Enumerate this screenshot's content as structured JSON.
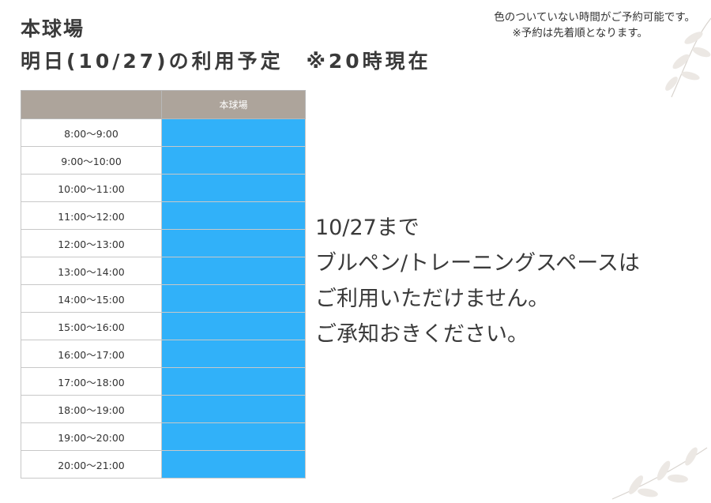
{
  "header": {
    "title_line1": "本球場",
    "title_line2": "明日(10/27)の利用予定　※20時現在",
    "note_line1": "色のついていない時間がご予約可能です。",
    "note_line2": "※予約は先着順となります。"
  },
  "schedule": {
    "column_header": "本球場",
    "reserved_color": "#31b1f9",
    "rows": [
      {
        "time": "8:00～9:00",
        "reserved": true
      },
      {
        "time": "9:00～10:00",
        "reserved": true
      },
      {
        "time": "10:00～11:00",
        "reserved": true
      },
      {
        "time": "11:00～12:00",
        "reserved": true
      },
      {
        "time": "12:00～13:00",
        "reserved": true
      },
      {
        "time": "13:00～14:00",
        "reserved": true
      },
      {
        "time": "14:00～15:00",
        "reserved": true
      },
      {
        "time": "15:00～16:00",
        "reserved": true
      },
      {
        "time": "16:00～17:00",
        "reserved": true
      },
      {
        "time": "17:00～18:00",
        "reserved": true
      },
      {
        "time": "18:00～19:00",
        "reserved": true
      },
      {
        "time": "19:00～20:00",
        "reserved": true
      },
      {
        "time": "20:00～21:00",
        "reserved": true
      }
    ]
  },
  "message": {
    "line1": "10/27まで",
    "line2": "ブルペン/トレーニングスペースは",
    "line3": "ご利用いただけません。",
    "line4": "ご承知おきください。"
  },
  "decorations": {
    "top_right": "leaf-branch-icon",
    "bottom_right": "leaf-branch-icon"
  }
}
